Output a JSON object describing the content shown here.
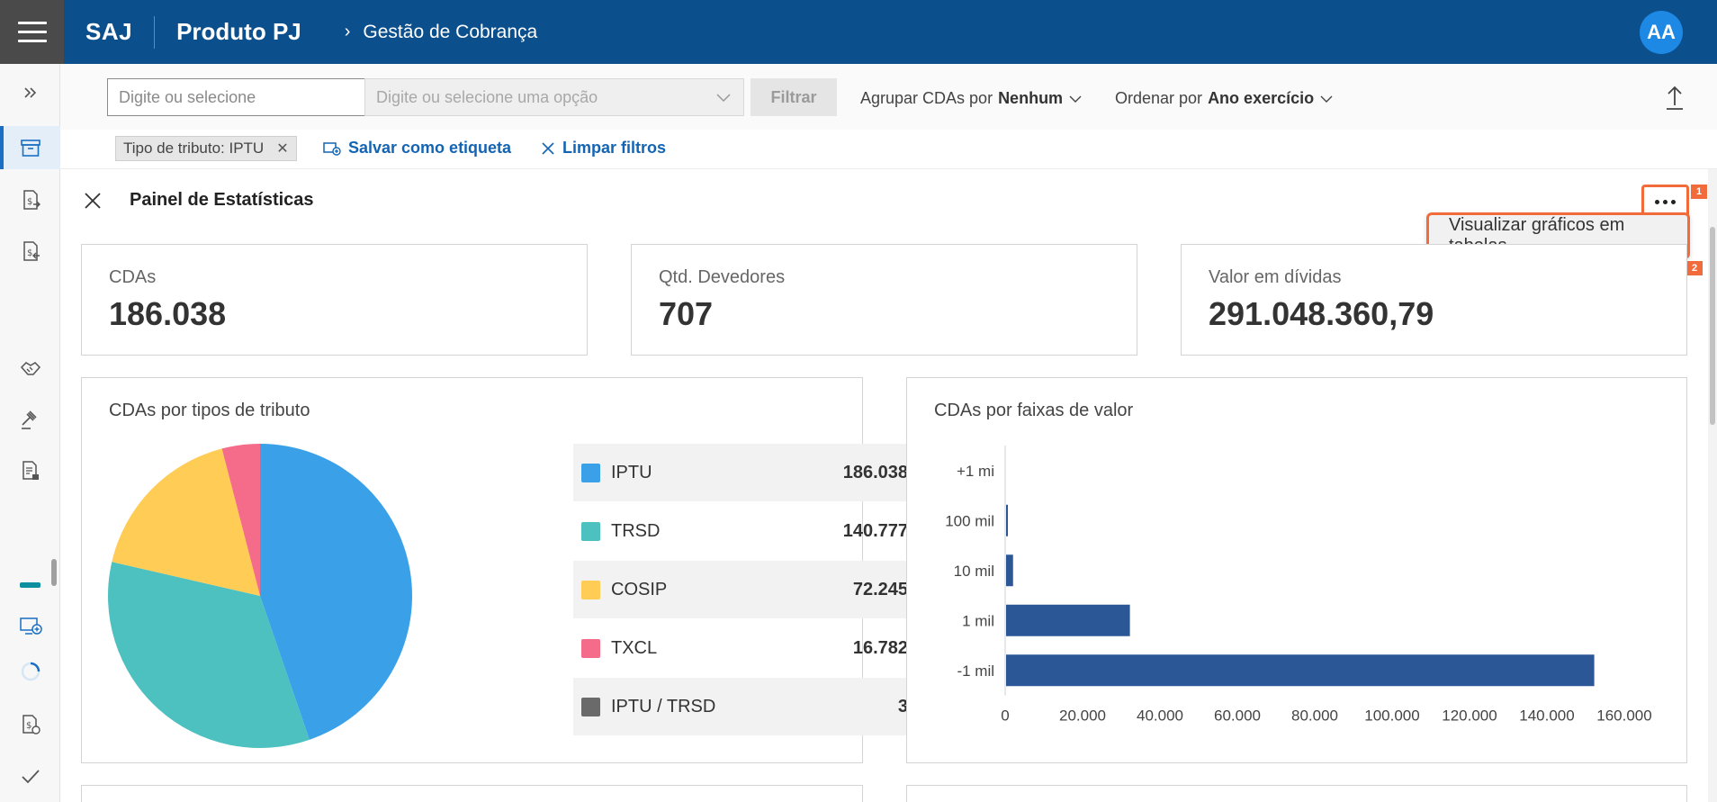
{
  "header": {
    "brand": "SAJ",
    "product": "Produto PJ",
    "breadcrumb": "Gestão de Cobrança",
    "avatar_initials": "AA",
    "bar_color": "#0b4f8c"
  },
  "sidebar": {
    "icons": [
      "chevrons-right-icon",
      "archive-box-icon",
      "money-file-export-icon",
      "money-file-import-icon",
      "handshake-icon",
      "gavel-icon",
      "document-user-icon",
      "teal-bar-icon",
      "screen-add-icon",
      "spinner-icon",
      "money-file-settings-icon",
      "check-icon"
    ]
  },
  "filters": {
    "select1_placeholder": "Digite ou selecione",
    "select2_placeholder": "Digite ou selecione uma opção",
    "filter_button": "Filtrar",
    "group_label": "Agrupar CDAs por",
    "group_value": "Nenhum",
    "order_label": "Ordenar por",
    "order_value": "Ano exercício"
  },
  "tags": {
    "chip": "Tipo de tributo: IPTU",
    "save_label": "Salvar como etiqueta",
    "clear_label": "Limpar filtros"
  },
  "panel": {
    "title": "Painel de Estatísticas",
    "badge1": "1",
    "badge2": "2",
    "menu_item": "Visualizar gráficos em tabelas",
    "highlight_color": "#f26b3a"
  },
  "stats": [
    {
      "label": "CDAs",
      "value": "186.038"
    },
    {
      "label": "Qtd. Devedores",
      "value": "707"
    },
    {
      "label": "Valor em dívidas",
      "value": "291.048.360,79"
    }
  ],
  "chart_data": [
    {
      "type": "pie",
      "title": "CDAs por tipos de tributo",
      "categories": [
        "IPTU",
        "TRSD",
        "COSIP",
        "TXCL",
        "IPTU / TRSD"
      ],
      "values": [
        186038,
        140777,
        72245,
        16782,
        3
      ],
      "value_labels": [
        "186.038",
        "140.777",
        "72.245",
        "16.782",
        "3"
      ],
      "colors": [
        "#3aa1e8",
        "#4dc0c0",
        "#ffcc55",
        "#f56b8a",
        "#6a6a6a"
      ],
      "legend": "right"
    },
    {
      "type": "bar",
      "orientation": "horizontal",
      "title": "CDAs por faixas de valor",
      "categories": [
        "+1 mi",
        "100 mil",
        "10 mil",
        "1 mil",
        "-1 mil"
      ],
      "values": [
        0,
        400,
        1800,
        32000,
        152000
      ],
      "xlim": [
        0,
        160000
      ],
      "xticks": [
        0,
        20000,
        40000,
        60000,
        80000,
        100000,
        120000,
        140000,
        160000
      ],
      "xtick_labels": [
        "0",
        "20.000",
        "40.000",
        "60.000",
        "80.000",
        "100.000",
        "120.000",
        "140.000",
        "160.000"
      ],
      "color": "#2b5797",
      "grid": false
    }
  ]
}
